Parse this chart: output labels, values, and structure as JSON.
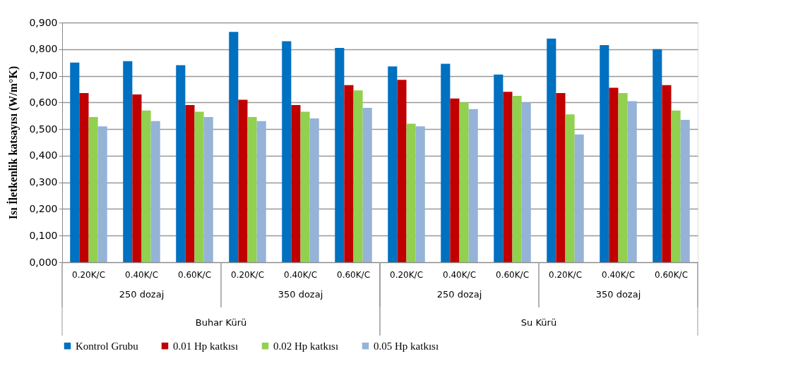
{
  "chart_data": {
    "type": "bar",
    "ylabel": "Isı İletkenlik katsayısı (W/m°K)",
    "categories": [
      "0.20K/C",
      "0.40K/C",
      "0.60K/C",
      "0.20K/C",
      "0.40K/C",
      "0.60K/C",
      "0.20K/C",
      "0.40K/C",
      "0.60K/C",
      "0.20K/C",
      "0.40K/C",
      "0.60K/C"
    ],
    "series": [
      {
        "name": "Kontrol Grubu",
        "color": "#0070c0",
        "values": [
          0.75,
          0.755,
          0.74,
          0.865,
          0.83,
          0.805,
          0.735,
          0.745,
          0.705,
          0.84,
          0.815,
          0.8
        ]
      },
      {
        "name": "0.01 Hp katkısı",
        "color": "#c00000",
        "values": [
          0.635,
          0.63,
          0.59,
          0.61,
          0.59,
          0.665,
          0.685,
          0.615,
          0.64,
          0.635,
          0.655,
          0.665
        ]
      },
      {
        "name": "0.02 Hp katkısı",
        "color": "#92d050",
        "values": [
          0.545,
          0.57,
          0.565,
          0.545,
          0.565,
          0.645,
          0.52,
          0.6,
          0.625,
          0.555,
          0.635,
          0.57
        ]
      },
      {
        "name": "0.05 Hp katkısı",
        "color": "#95b3d7",
        "values": [
          0.51,
          0.53,
          0.545,
          0.53,
          0.54,
          0.58,
          0.51,
          0.575,
          0.6,
          0.48,
          0.605,
          0.535
        ]
      }
    ],
    "ylim": [
      0,
      0.9
    ],
    "yticks": [
      {
        "value": 0,
        "label": "0,000"
      },
      {
        "value": 0.1,
        "label": "0,100"
      },
      {
        "value": 0.2,
        "label": "0,200"
      },
      {
        "value": 0.3,
        "label": "0,300"
      },
      {
        "value": 0.4,
        "label": "0,400"
      },
      {
        "value": 0.5,
        "label": "0,500"
      },
      {
        "value": 0.6,
        "label": "0,600"
      },
      {
        "value": 0.7,
        "label": "0,700"
      },
      {
        "value": 0.8,
        "label": "0,800"
      },
      {
        "value": 0.9,
        "label": "0,900"
      }
    ],
    "annotations": [
      "250 dozaj",
      "350 dozaj",
      "250 dozaj",
      "350 dozaj",
      "Buhar Kürü",
      "Su Kürü"
    ],
    "grid": "y",
    "legend": "bottom"
  }
}
